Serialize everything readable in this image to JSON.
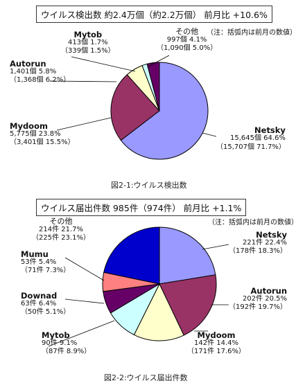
{
  "chart_data": [
    {
      "type": "pie",
      "title": "ウイルス検出数 約2.4万個（約2.2万個） 前月比 +10.6%",
      "note": "（注：括弧内は前月の数値）",
      "caption": "図2-1:ウイルス検出数",
      "slices": [
        {
          "name": "Netsky",
          "label": "15,645個 64.6%",
          "prev": "（15,707個 71.7%）",
          "value": 64.6,
          "color": "#9999ff"
        },
        {
          "name": "Mydoom",
          "label": "5,775個 23.8%",
          "prev": "（3,401個 15.5%）",
          "value": 23.8,
          "color": "#993366"
        },
        {
          "name": "Autorun",
          "label": "1,401個 5.8%",
          "prev": "（1,368個 6.2%）",
          "value": 5.8,
          "color": "#ffffcc"
        },
        {
          "name": "Mytob",
          "label": "413個 1.7%",
          "prev": "（339個 1.5%）",
          "value": 1.7,
          "color": "#ccffff"
        },
        {
          "name": "その他",
          "label": "997個 4.1%",
          "prev": "（1,090個 5.0%）",
          "value": 4.1,
          "color": "#660066"
        }
      ]
    },
    {
      "type": "pie",
      "title": "ウイルス届出件数 985件（974件） 前月比 +1.1%",
      "note": "（注：括弧内は前月の数値）",
      "caption": "図2-2:ウイルス届出件数",
      "slices": [
        {
          "name": "Netsky",
          "label": "221件 22.4%",
          "prev": "（178件 18.3%）",
          "value": 22.4,
          "color": "#9999ff"
        },
        {
          "name": "Autorun",
          "label": "202件 20.5%",
          "prev": "（192件 19.7%）",
          "value": 20.5,
          "color": "#993366"
        },
        {
          "name": "Mydoom",
          "label": "142件 14.4%",
          "prev": "（171件 17.6%）",
          "value": 14.4,
          "color": "#ffffcc"
        },
        {
          "name": "Mytob",
          "label": "90件 9.1%",
          "prev": "（87件 8.9%）",
          "value": 9.1,
          "color": "#ccffff"
        },
        {
          "name": "Downad",
          "label": "63件 6.4%",
          "prev": "（50件 5.1%）",
          "value": 6.4,
          "color": "#660066"
        },
        {
          "name": "Mumu",
          "label": "53件 5.4%",
          "prev": "（71件 7.3%）",
          "value": 5.4,
          "color": "#ff8080"
        },
        {
          "name": "その他",
          "label": "214件 21.7%",
          "prev": "（225件 23.1%）",
          "value": 21.7,
          "color": "#0000cc"
        }
      ]
    }
  ]
}
